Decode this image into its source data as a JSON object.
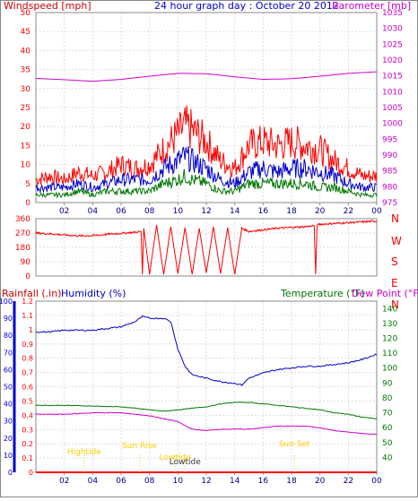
{
  "colors": {
    "background": "#ffffff",
    "frame": "#888888",
    "grid": "#dddddd",
    "red": "#ff0000",
    "darkred": "#cc0000",
    "blue": "#0000cc",
    "green": "#007700",
    "magenta": "#cc00cc",
    "navy": "#000088",
    "yellow": "#ffcc00",
    "text_dark": "#333333"
  },
  "top_panel": {
    "left_title": "Windspeed [mph]",
    "center_title": "24 hour graph day : October 20 2012",
    "right_title": "Barometer [mb]"
  },
  "direction_panel": {
    "compass_labels": [
      "N",
      "W",
      "S",
      "E",
      "N"
    ]
  },
  "bottom_panel": {
    "rainfall_title": "Rainfall (.in)",
    "humidity_title": "Humidity (%)",
    "temperature_title": "Temperature (°F)",
    "dewpoint_title": "Dew Point (°F)",
    "annotations": [
      "Hightide",
      "Sun Rise",
      "Lowtide",
      "Sun Set",
      "Lowtide"
    ]
  },
  "chart_data": [
    {
      "panel": "wind_and_barometer",
      "type": "line",
      "title": "24 hour graph day : October 20 2012",
      "x_ticks": [
        "02",
        "04",
        "06",
        "08",
        "10",
        "12",
        "14",
        "16",
        "18",
        "20",
        "22",
        "00"
      ],
      "xlim": [
        0,
        24
      ],
      "grid": true,
      "y_left": {
        "label": "Windspeed [mph]",
        "ticks": [
          0,
          5,
          10,
          15,
          20,
          25,
          30,
          35,
          40,
          45,
          50
        ],
        "lim": [
          0,
          50
        ]
      },
      "y_right": {
        "label": "Barometer [mb]",
        "ticks": [
          975,
          980,
          985,
          990,
          995,
          1000,
          1005,
          1010,
          1015,
          1020,
          1025,
          1030,
          1035
        ],
        "lim": [
          975,
          1035
        ]
      },
      "series": [
        {
          "name": "Windspeed [mph]",
          "axis": "left",
          "color": "#ff0000",
          "x": [
            0,
            1,
            2,
            3,
            4,
            5,
            6,
            7,
            8,
            9,
            10,
            10.5,
            11,
            12,
            13,
            14,
            15,
            16,
            17,
            18,
            19,
            20,
            21,
            22,
            23,
            24
          ],
          "y": [
            6,
            7,
            6,
            8,
            7,
            8,
            10,
            9,
            10,
            14,
            18,
            20,
            19,
            16,
            11,
            9,
            15,
            16,
            15,
            16,
            15,
            14,
            11,
            9,
            7,
            7
          ]
        },
        {
          "axis": "left",
          "color": "#0000cc",
          "x": [
            0,
            1,
            2,
            3,
            4,
            5,
            6,
            7,
            8,
            9,
            10,
            10.5,
            11,
            12,
            13,
            14,
            15,
            16,
            17,
            18,
            19,
            20,
            21,
            22,
            23,
            24
          ],
          "y": [
            4,
            4,
            4,
            5,
            4,
            5,
            6,
            6,
            6,
            9,
            11,
            12,
            11,
            9,
            6,
            5,
            8,
            9,
            8,
            9,
            9,
            8,
            7,
            5,
            4,
            4
          ]
        },
        {
          "axis": "left",
          "color": "#007700",
          "x": [
            0,
            1,
            2,
            3,
            4,
            5,
            6,
            7,
            8,
            9,
            10,
            10.5,
            11,
            12,
            13,
            14,
            15,
            16,
            17,
            18,
            19,
            20,
            21,
            22,
            23,
            24
          ],
          "y": [
            2,
            2,
            2,
            3,
            2,
            3,
            3,
            3,
            3,
            5,
            6,
            7,
            6,
            5,
            3,
            3,
            5,
            5,
            5,
            5,
            5,
            4,
            4,
            3,
            2,
            2
          ]
        },
        {
          "name": "Barometer [mb]",
          "axis": "right",
          "color": "#cc00cc",
          "x": [
            0,
            2,
            4,
            6,
            8,
            10,
            12,
            14,
            16,
            18,
            20,
            22,
            24
          ],
          "y": [
            1014.2,
            1013.8,
            1013.3,
            1013.9,
            1014.9,
            1015.8,
            1015.7,
            1014.7,
            1013.9,
            1014.1,
            1014.9,
            1015.8,
            1016.3
          ]
        }
      ]
    },
    {
      "panel": "wind_direction",
      "type": "line",
      "x_ticks": [
        "02",
        "04",
        "06",
        "08",
        "10",
        "12",
        "14",
        "16",
        "18",
        "20",
        "22",
        "00"
      ],
      "xlim": [
        0,
        24
      ],
      "y_left": {
        "ticks": [
          0,
          90,
          180,
          270,
          360
        ],
        "lim": [
          0,
          360
        ]
      },
      "y_right": {
        "ticks": [
          "N",
          "W",
          "S",
          "E",
          "N"
        ]
      },
      "series": [
        {
          "name": "Wind direction",
          "color": "#ff0000",
          "x": [
            0,
            1,
            2,
            3,
            4,
            5,
            6,
            7,
            7.4,
            7.5,
            7.6,
            8,
            8.5,
            9,
            9.5,
            10,
            10.5,
            11,
            11.5,
            12,
            12.5,
            13,
            13.5,
            14,
            14.5,
            15,
            16,
            17,
            18,
            19,
            19.6,
            19.7,
            19.8,
            20,
            21,
            22,
            23,
            24
          ],
          "y": [
            270,
            265,
            258,
            252,
            254,
            262,
            268,
            275,
            280,
            10,
            300,
            10,
            320,
            10,
            310,
            15,
            305,
            10,
            300,
            20,
            310,
            15,
            305,
            10,
            300,
            280,
            290,
            300,
            305,
            310,
            315,
            10,
            320,
            325,
            330,
            335,
            340,
            345
          ]
        }
      ]
    },
    {
      "panel": "rain_humidity_temperature",
      "type": "line",
      "x_ticks": [
        "02",
        "04",
        "06",
        "08",
        "10",
        "12",
        "14",
        "16",
        "18",
        "20",
        "22",
        "00"
      ],
      "xlim": [
        0,
        24
      ],
      "y_rainfall": {
        "label": "Rainfall (.in)",
        "ticks": [
          0,
          0.1,
          0.2,
          0.3,
          0.4,
          0.5,
          0.6,
          0.7,
          0.8,
          0.9,
          1,
          1.1,
          1.2
        ],
        "lim": [
          0,
          1.2
        ]
      },
      "y_humidity": {
        "label": "Humidity (%)",
        "ticks": [
          0,
          10,
          20,
          30,
          40,
          50,
          60,
          70,
          80,
          90,
          100
        ],
        "lim": [
          0,
          100
        ]
      },
      "y_right": {
        "label": "Temperature (°F)",
        "ticks": [
          40,
          50,
          60,
          70,
          80,
          90,
          100,
          110,
          120,
          130,
          140
        ],
        "lim": [
          30,
          145
        ]
      },
      "annotations": [
        {
          "text": "Hightide",
          "x": 3.4
        },
        {
          "text": "Sun Rise",
          "x": 7.3
        },
        {
          "text": "Lowtide",
          "x": 9.8
        },
        {
          "text": "Lowtide",
          "x": 10.5
        },
        {
          "text": "Sun Set",
          "x": 18.2
        }
      ],
      "series": [
        {
          "name": "Humidity (%)",
          "axis": "humidity",
          "color": "#0000cc",
          "x": [
            0,
            1,
            2,
            3,
            4,
            5,
            6,
            7,
            7.5,
            8,
            8.5,
            9,
            9.5,
            10,
            10.5,
            11,
            12,
            13,
            14,
            14.5,
            15,
            16,
            17,
            18,
            19,
            20,
            21,
            22,
            23,
            24
          ],
          "y": [
            82,
            82,
            83,
            83,
            83,
            84,
            85,
            88,
            91,
            90,
            90,
            90,
            88,
            72,
            62,
            57,
            55,
            53,
            52,
            51,
            55,
            58,
            60,
            61,
            62,
            62,
            63,
            64,
            66,
            69
          ]
        },
        {
          "name": "Temperature (°F)",
          "axis": "right",
          "color": "#007700",
          "x": [
            0,
            2,
            4,
            6,
            7,
            8,
            9,
            10,
            11,
            12,
            13,
            14,
            15,
            16,
            17,
            18,
            19,
            20,
            21,
            22,
            23,
            24
          ],
          "y": [
            75,
            75,
            74.5,
            74,
            73,
            72,
            71,
            72,
            73,
            74,
            76,
            77,
            77,
            76,
            75,
            74,
            73,
            72,
            70,
            69,
            67,
            66
          ]
        },
        {
          "name": "Dew Point (°F)",
          "axis": "right",
          "color": "#cc00cc",
          "x": [
            0,
            2,
            4,
            6,
            7,
            8,
            9,
            10,
            11,
            12,
            13,
            14,
            15,
            16,
            17,
            18,
            19,
            20,
            21,
            22,
            23,
            24
          ],
          "y": [
            69,
            69,
            70,
            70,
            69,
            68,
            66,
            64,
            59,
            58,
            59,
            59,
            59,
            60,
            61,
            61,
            61,
            60,
            58,
            57,
            56,
            55.5
          ]
        },
        {
          "name": "Rainfall (.in)",
          "axis": "rainfall",
          "color": "#ff0000",
          "x": [
            0,
            24
          ],
          "y": [
            0,
            0
          ]
        }
      ]
    }
  ]
}
